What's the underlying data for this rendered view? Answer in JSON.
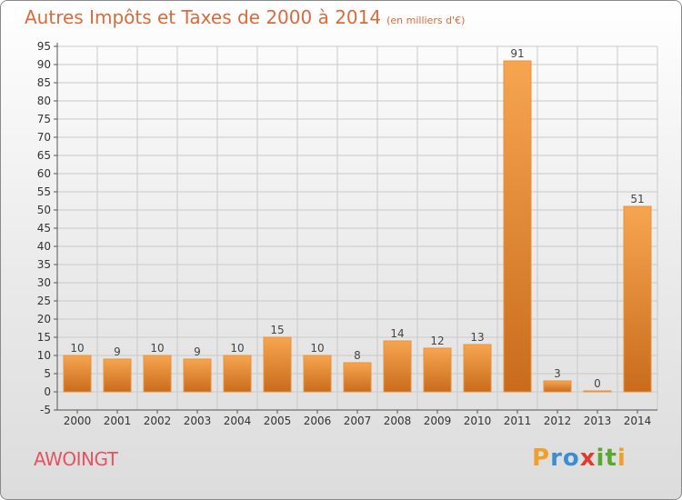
{
  "title": "Autres Impôts et Taxes de 2000 à 2014",
  "subtitle": "(en milliers d'€)",
  "commune": "AWOINGT",
  "brand": {
    "letters": [
      "P",
      "r",
      "o",
      "x",
      "i",
      "t",
      "i"
    ],
    "colors": [
      "#f0a02a",
      "#3b8fd0",
      "#3b8fd0",
      "#e23b2e",
      "#5aa832",
      "#5aa832",
      "#f0a02a"
    ]
  },
  "colors": {
    "title": "#d96b3a",
    "commune": "#e4545f",
    "bar_light": "#f7a550",
    "bar_dark": "#c86c1c",
    "grid": "#c9c9c9"
  },
  "chart_data": {
    "type": "bar",
    "title": "Autres Impôts et Taxes de 2000 à 2014",
    "subtitle": "(en milliers d'€)",
    "categories": [
      "2000",
      "2001",
      "2002",
      "2003",
      "2004",
      "2005",
      "2006",
      "2007",
      "2008",
      "2009",
      "2010",
      "2011",
      "2012",
      "2013",
      "2014"
    ],
    "values": [
      10,
      9,
      10,
      9,
      10,
      15,
      10,
      8,
      14,
      12,
      13,
      91,
      3,
      0,
      51
    ],
    "ylim": [
      -5,
      95
    ],
    "yticks": [
      -5,
      0,
      5,
      10,
      15,
      20,
      25,
      30,
      35,
      40,
      45,
      50,
      55,
      60,
      65,
      70,
      75,
      80,
      85,
      90,
      95
    ],
    "grid": true,
    "data_labels": true
  }
}
